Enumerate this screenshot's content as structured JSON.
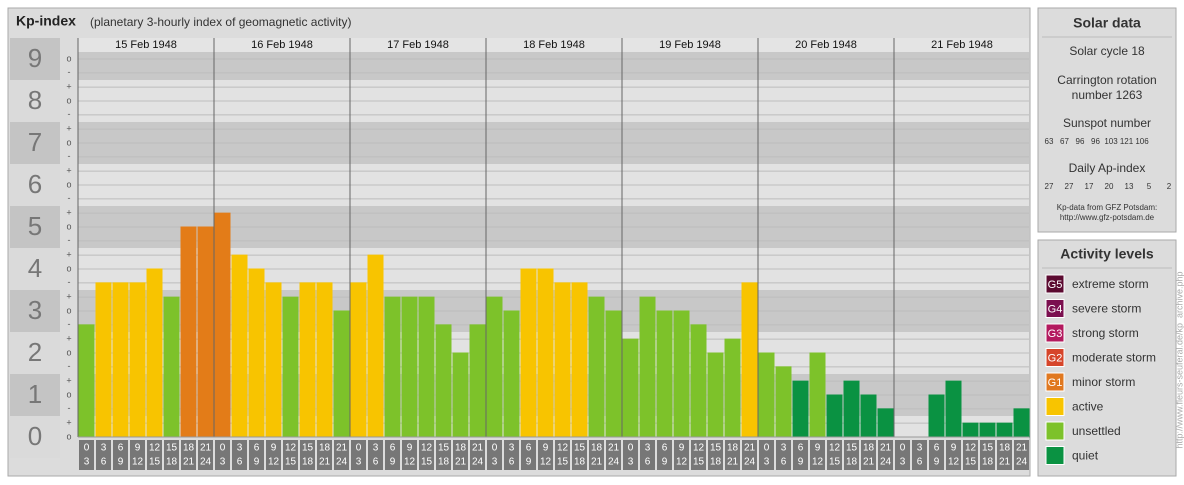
{
  "chart_data": {
    "type": "bar",
    "title": "Kp-index",
    "subtitle": "(planetary 3-hourly index of geomagnetic activity)",
    "ylim": [
      0,
      9
    ],
    "yticks": [
      0,
      1,
      2,
      3,
      4,
      5,
      6,
      7,
      8,
      9
    ],
    "yminor": [
      {
        "value": 0,
        "label": "o"
      },
      {
        "value": 0.33,
        "label": "+"
      },
      {
        "value": 0.67,
        "label": "-"
      },
      {
        "value": 1,
        "label": "o"
      },
      {
        "value": 1.33,
        "label": "+"
      },
      {
        "value": 1.67,
        "label": "-"
      },
      {
        "value": 2,
        "label": "o"
      },
      {
        "value": 2.33,
        "label": "+"
      },
      {
        "value": 2.67,
        "label": "-"
      },
      {
        "value": 3,
        "label": "o"
      },
      {
        "value": 3.33,
        "label": "+"
      },
      {
        "value": 3.67,
        "label": "-"
      },
      {
        "value": 4,
        "label": "o"
      },
      {
        "value": 4.33,
        "label": "+"
      },
      {
        "value": 4.67,
        "label": "-"
      },
      {
        "value": 5,
        "label": "o"
      },
      {
        "value": 5.33,
        "label": "+"
      },
      {
        "value": 5.67,
        "label": "-"
      },
      {
        "value": 6,
        "label": "o"
      },
      {
        "value": 6.33,
        "label": "+"
      },
      {
        "value": 6.67,
        "label": "-"
      },
      {
        "value": 7,
        "label": "o"
      },
      {
        "value": 7.33,
        "label": "+"
      },
      {
        "value": 7.67,
        "label": "-"
      },
      {
        "value": 8,
        "label": "o"
      },
      {
        "value": 8.33,
        "label": "+"
      },
      {
        "value": 8.67,
        "label": "-"
      },
      {
        "value": 9,
        "label": "o"
      }
    ],
    "hours": [
      [
        0,
        3
      ],
      [
        3,
        6
      ],
      [
        6,
        9
      ],
      [
        9,
        12
      ],
      [
        12,
        15
      ],
      [
        15,
        18
      ],
      [
        18,
        21
      ],
      [
        21,
        24
      ]
    ],
    "days": [
      {
        "label": "15 Feb 1948",
        "values": [
          2.67,
          3.67,
          3.67,
          3.67,
          4,
          3.33,
          5,
          5
        ],
        "colors": [
          "#7dc22a",
          "#f8c400",
          "#f8c400",
          "#f8c400",
          "#f8c400",
          "#7dc22a",
          "#e37c18",
          "#e37c18"
        ]
      },
      {
        "label": "16 Feb 1948",
        "values": [
          5.33,
          4.33,
          4,
          3.67,
          3.33,
          3.67,
          3.67,
          3
        ],
        "colors": [
          "#e37c18",
          "#f8c400",
          "#f8c400",
          "#f8c400",
          "#7dc22a",
          "#f8c400",
          "#f8c400",
          "#7dc22a"
        ]
      },
      {
        "label": "17 Feb 1948",
        "values": [
          3.67,
          4.33,
          3.33,
          3.33,
          3.33,
          2.67,
          2,
          2.67
        ],
        "colors": [
          "#f8c400",
          "#f8c400",
          "#7dc22a",
          "#7dc22a",
          "#7dc22a",
          "#7dc22a",
          "#7dc22a",
          "#7dc22a"
        ]
      },
      {
        "label": "18 Feb 1948",
        "values": [
          3.33,
          3,
          4,
          4,
          3.67,
          3.67,
          3.33,
          3
        ],
        "colors": [
          "#7dc22a",
          "#7dc22a",
          "#f8c400",
          "#f8c400",
          "#f8c400",
          "#f8c400",
          "#7dc22a",
          "#7dc22a"
        ]
      },
      {
        "label": "19 Feb 1948",
        "values": [
          2.33,
          3.33,
          3,
          3,
          2.67,
          2,
          2.33,
          3.67
        ],
        "colors": [
          "#7dc22a",
          "#7dc22a",
          "#7dc22a",
          "#7dc22a",
          "#7dc22a",
          "#7dc22a",
          "#7dc22a",
          "#f8c400"
        ]
      },
      {
        "label": "20 Feb 1948",
        "values": [
          2,
          1.67,
          1.33,
          2,
          1,
          1.33,
          1,
          0.67
        ],
        "colors": [
          "#7dc22a",
          "#7dc22a",
          "#0a9242",
          "#7dc22a",
          "#0a9242",
          "#0a9242",
          "#0a9242",
          "#0a9242"
        ]
      },
      {
        "label": "21 Feb 1948",
        "values": [
          0,
          0,
          1,
          1.33,
          0.33,
          0.33,
          0.33,
          0.67
        ],
        "colors": [
          "#0a9242",
          "#0a9242",
          "#0a9242",
          "#0a9242",
          "#0a9242",
          "#0a9242",
          "#0a9242",
          "#0a9242"
        ]
      }
    ]
  },
  "solar_data": {
    "title": "Solar data",
    "cycle": "Solar cycle 18",
    "carrington": [
      "Carrington rotation",
      "number 1263"
    ],
    "sunspot_title": "Sunspot number",
    "sunspots": [
      63,
      67,
      96,
      96,
      103,
      121,
      106
    ],
    "ap_title": "Daily Ap-index",
    "ap": [
      27,
      27,
      17,
      20,
      13,
      5,
      2
    ],
    "credit": [
      "Kp-data from GFZ Potsdam:",
      "http://www.gfz-potsdam.de"
    ]
  },
  "activity_levels": {
    "title": "Activity levels",
    "items": [
      {
        "badge": "G5",
        "label": "extreme storm",
        "color": "#5b0a30"
      },
      {
        "badge": "G4",
        "label": "severe storm",
        "color": "#7b0f4f"
      },
      {
        "badge": "G3",
        "label": "strong storm",
        "color": "#b3195e"
      },
      {
        "badge": "G2",
        "label": "moderate storm",
        "color": "#d6452a"
      },
      {
        "badge": "G1",
        "label": "minor storm",
        "color": "#e07820"
      },
      {
        "label": "active",
        "color": "#f8c400"
      },
      {
        "label": "unsettled",
        "color": "#7dc22a"
      },
      {
        "label": "quiet",
        "color": "#0a9242"
      }
    ]
  },
  "watermark": "http://www.fleurs-seuferal.de/kp_archive.php"
}
